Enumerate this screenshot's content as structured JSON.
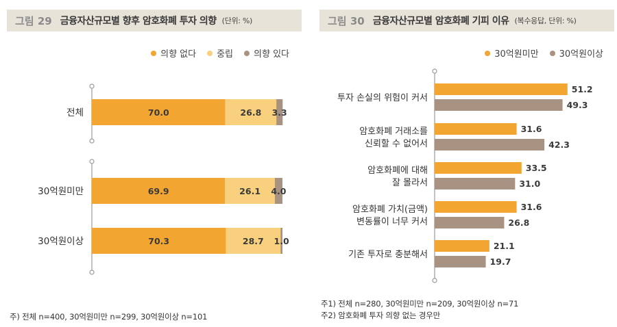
{
  "fig29": {
    "number": "그림 29",
    "title": "금융자산규모별 향후 암호화폐 투자 의향",
    "unit": "(단위: %)",
    "note": "주) 전체 n=400, 30억원미만 n=299, 30억원이상 n=101"
  },
  "fig30": {
    "number": "그림 30",
    "title": "금융자산규모별 암호화폐 기피 이유",
    "unit": "(복수응답, 단위: %)",
    "note1": "주1) 전체 n=280, 30억원미만 n=209, 30억원이상 n=71",
    "note2": "주2) 암호화폐 투자 의향 없는 경우만"
  },
  "colors": {
    "orange": "#f2a531",
    "light": "#f9d07e",
    "taupe": "#a89281"
  },
  "chart_data": [
    {
      "type": "bar",
      "orientation": "horizontal",
      "stacked": true,
      "categories": [
        "전체",
        "30억원미만",
        "30억원이상"
      ],
      "series": [
        {
          "name": "의향 없다",
          "values": [
            70.0,
            69.9,
            70.3
          ],
          "labels": [
            "70.0",
            "69.9",
            "70.3"
          ],
          "color": "#f2a531"
        },
        {
          "name": "중립",
          "values": [
            26.8,
            26.1,
            28.7
          ],
          "labels": [
            "26.8",
            "26.1",
            "28.7"
          ],
          "color": "#f9d07e"
        },
        {
          "name": "의향 있다",
          "values": [
            3.3,
            4.0,
            1.0
          ],
          "labels": [
            "3.3",
            "4.0",
            "1.0"
          ],
          "color": "#a89281"
        }
      ],
      "xlim": [
        0,
        100
      ],
      "legend": "top-right"
    },
    {
      "type": "bar",
      "orientation": "horizontal",
      "categories": [
        [
          "투자 손실의 위험이 커서"
        ],
        [
          "암호화폐 거래소를",
          "신뢰할 수 없어서"
        ],
        [
          "암호화폐에 대해",
          "잘 몰라서"
        ],
        [
          "암호화폐 가치(금액)",
          "변동률이 너무 커서"
        ],
        [
          "기존 투자로 충분해서"
        ]
      ],
      "series": [
        {
          "name": "30억원미만",
          "values": [
            51.2,
            31.6,
            33.5,
            31.6,
            21.1
          ],
          "labels": [
            "51.2",
            "31.6",
            "33.5",
            "31.6",
            "21.1"
          ],
          "color": "#f2a531"
        },
        {
          "name": "30억원이상",
          "values": [
            49.3,
            42.3,
            31.0,
            26.8,
            19.7
          ],
          "labels": [
            "49.3",
            "42.3",
            "31.0",
            "26.8",
            "19.7"
          ],
          "color": "#a89281"
        }
      ],
      "xlim": [
        0,
        65
      ],
      "legend": "top-right"
    }
  ]
}
